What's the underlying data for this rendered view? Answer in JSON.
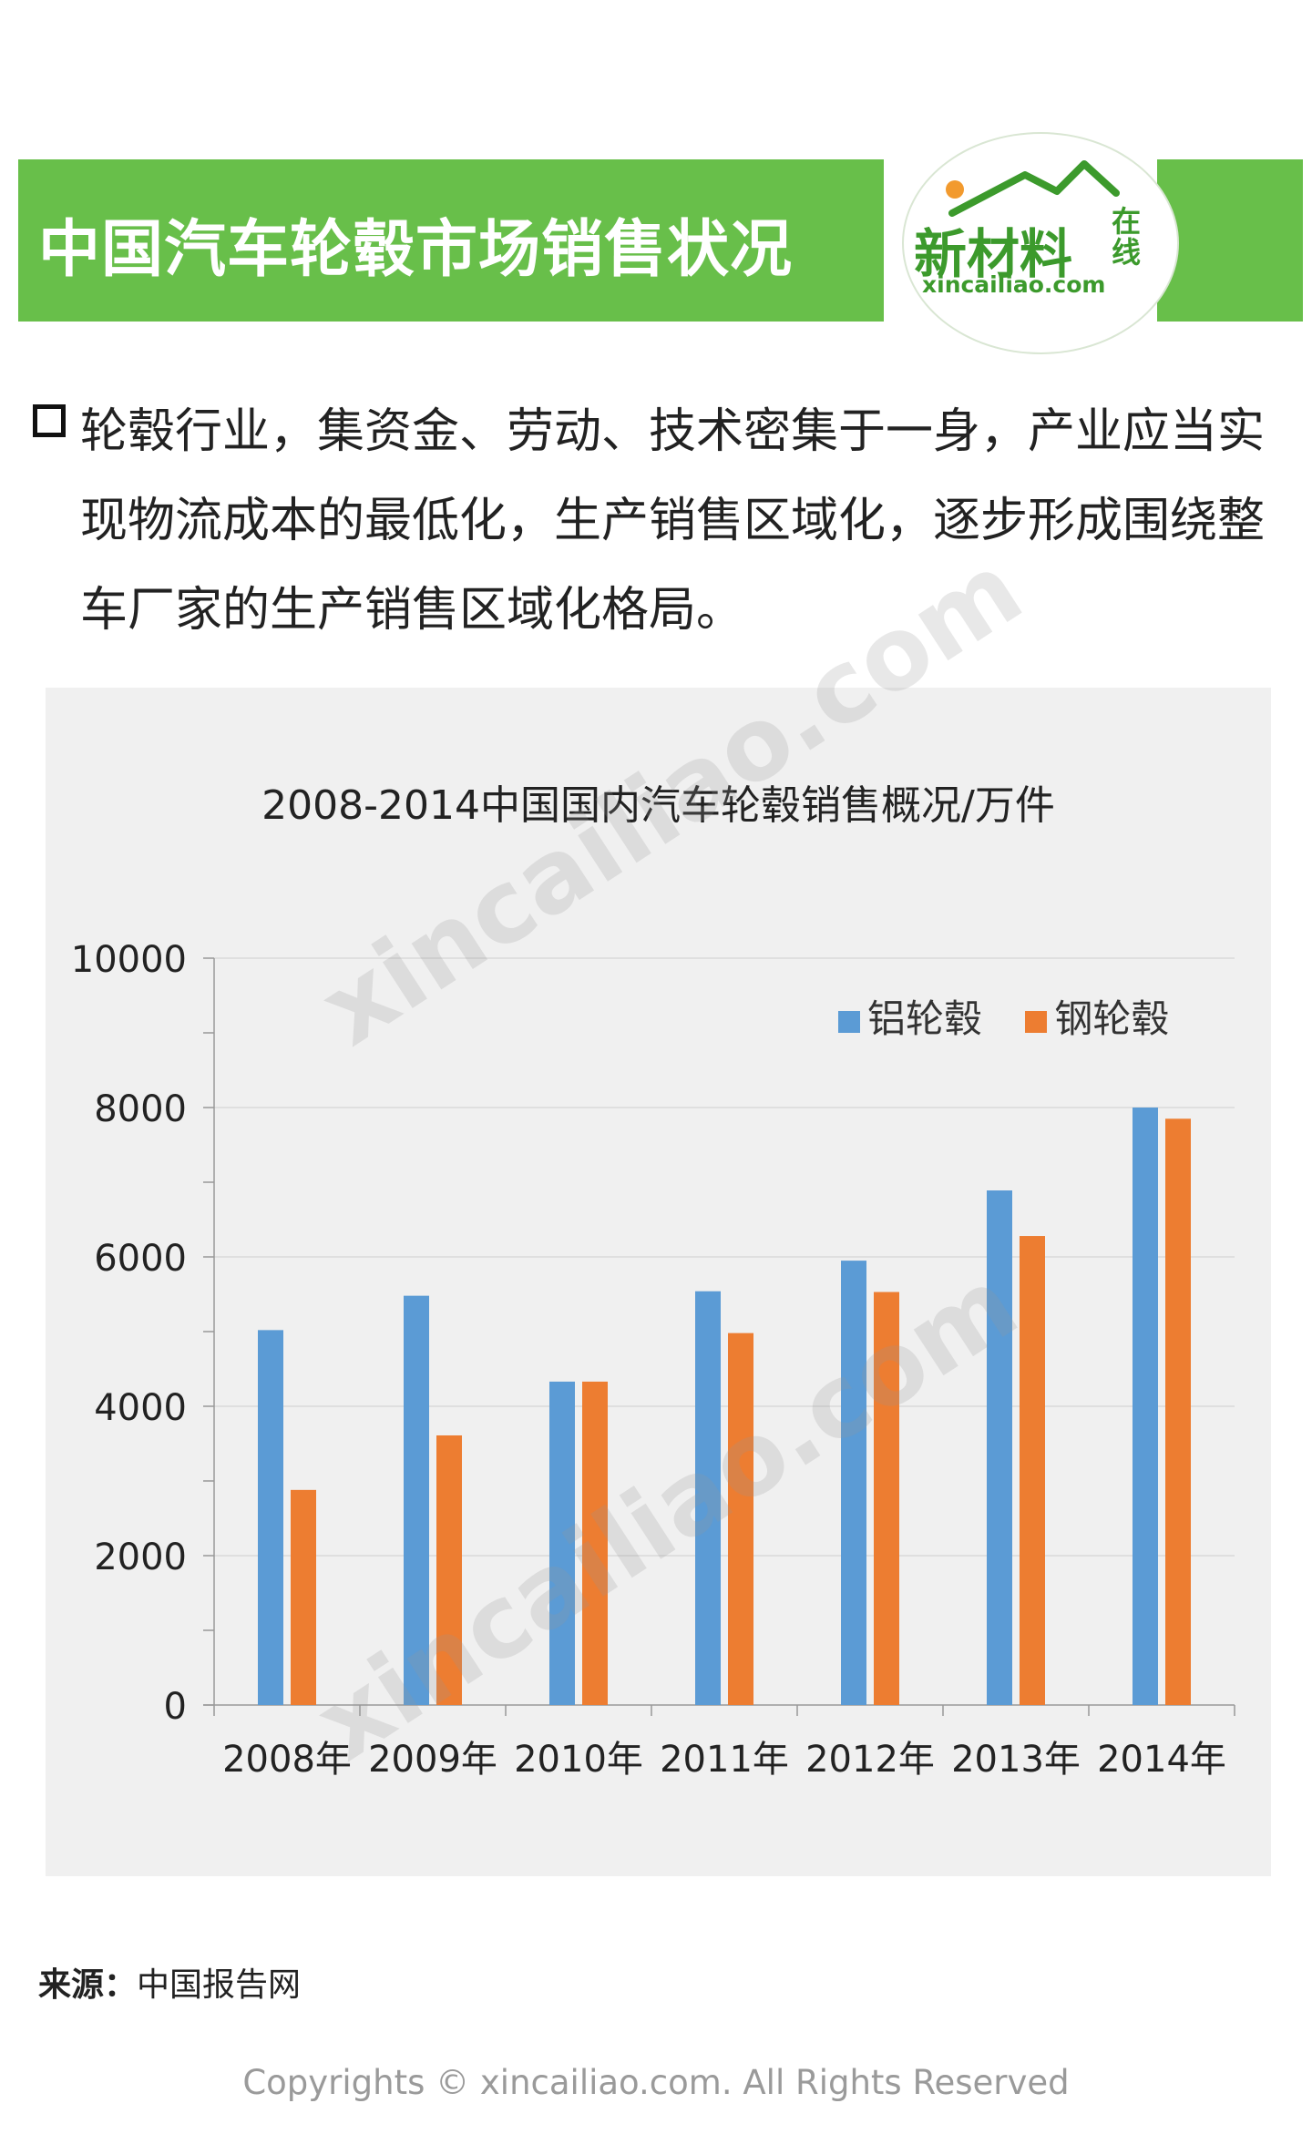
{
  "header": {
    "title": "中国汽车轮毂市场销售状况",
    "logo": {
      "main": "新材料",
      "side": "在线",
      "url": "xincailiao.com"
    },
    "colors": {
      "band": "#68bf4a",
      "logo_green": "#3c9a2c",
      "sun": "#f29a2e"
    }
  },
  "intro": {
    "text": "轮毂行业，集资金、劳动、技术密集于一身，产业应当实现物流成本的最低化，生产销售区域化，逐步形成围绕整车厂家的生产销售区域化格局。"
  },
  "watermark": "xincailiao.com",
  "chart_data": {
    "type": "bar",
    "title": "2008-2014中国国内汽车轮毂销售概况/万件",
    "categories": [
      "2008年",
      "2009年",
      "2010年",
      "2011年",
      "2012年",
      "2013年",
      "2014年"
    ],
    "series": [
      {
        "name": "铝轮毂",
        "color": "#5b9bd5",
        "values": [
          5020,
          5480,
          4330,
          5540,
          5950,
          6890,
          8000
        ]
      },
      {
        "name": "钢轮毂",
        "color": "#ed7d31",
        "values": [
          2880,
          3610,
          4330,
          4980,
          5530,
          6280,
          7850
        ]
      }
    ],
    "ylim": [
      0,
      10000
    ],
    "yticks": [
      0,
      2000,
      4000,
      6000,
      8000,
      10000
    ],
    "grid": true,
    "legend_position": "top-right"
  },
  "footer": {
    "source_label": "来源：",
    "source_value": "中国报告网",
    "copyright": "Copyrights © xincailiao.com. All Rights Reserved"
  }
}
